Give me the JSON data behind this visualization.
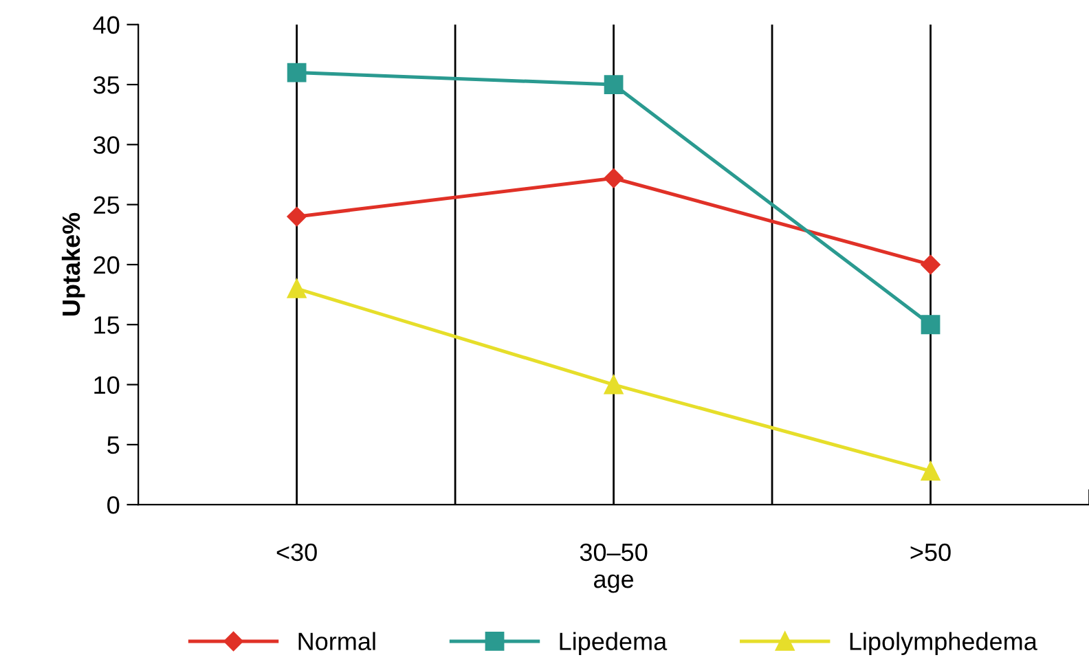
{
  "chart_data": {
    "type": "line",
    "xlabel": "age",
    "ylabel": "Uptake%",
    "categories": [
      "<30",
      "30–50",
      ">50"
    ],
    "series": [
      {
        "name": "Normal",
        "color": "#e03127",
        "marker": "diamond",
        "values": [
          24,
          27.2,
          20
        ]
      },
      {
        "name": "Lipedema",
        "color": "#2a9a90",
        "marker": "square",
        "values": [
          36,
          35,
          15
        ]
      },
      {
        "name": "Lipolymphedema",
        "color": "#e6de2a",
        "marker": "triangle",
        "values": [
          18,
          10,
          2.8
        ]
      }
    ],
    "ylim": [
      0,
      40
    ],
    "yticks": [
      0,
      5,
      10,
      15,
      20,
      25,
      30,
      35,
      40
    ],
    "grid": "x",
    "legend": "bottom",
    "line_style": "solid"
  }
}
